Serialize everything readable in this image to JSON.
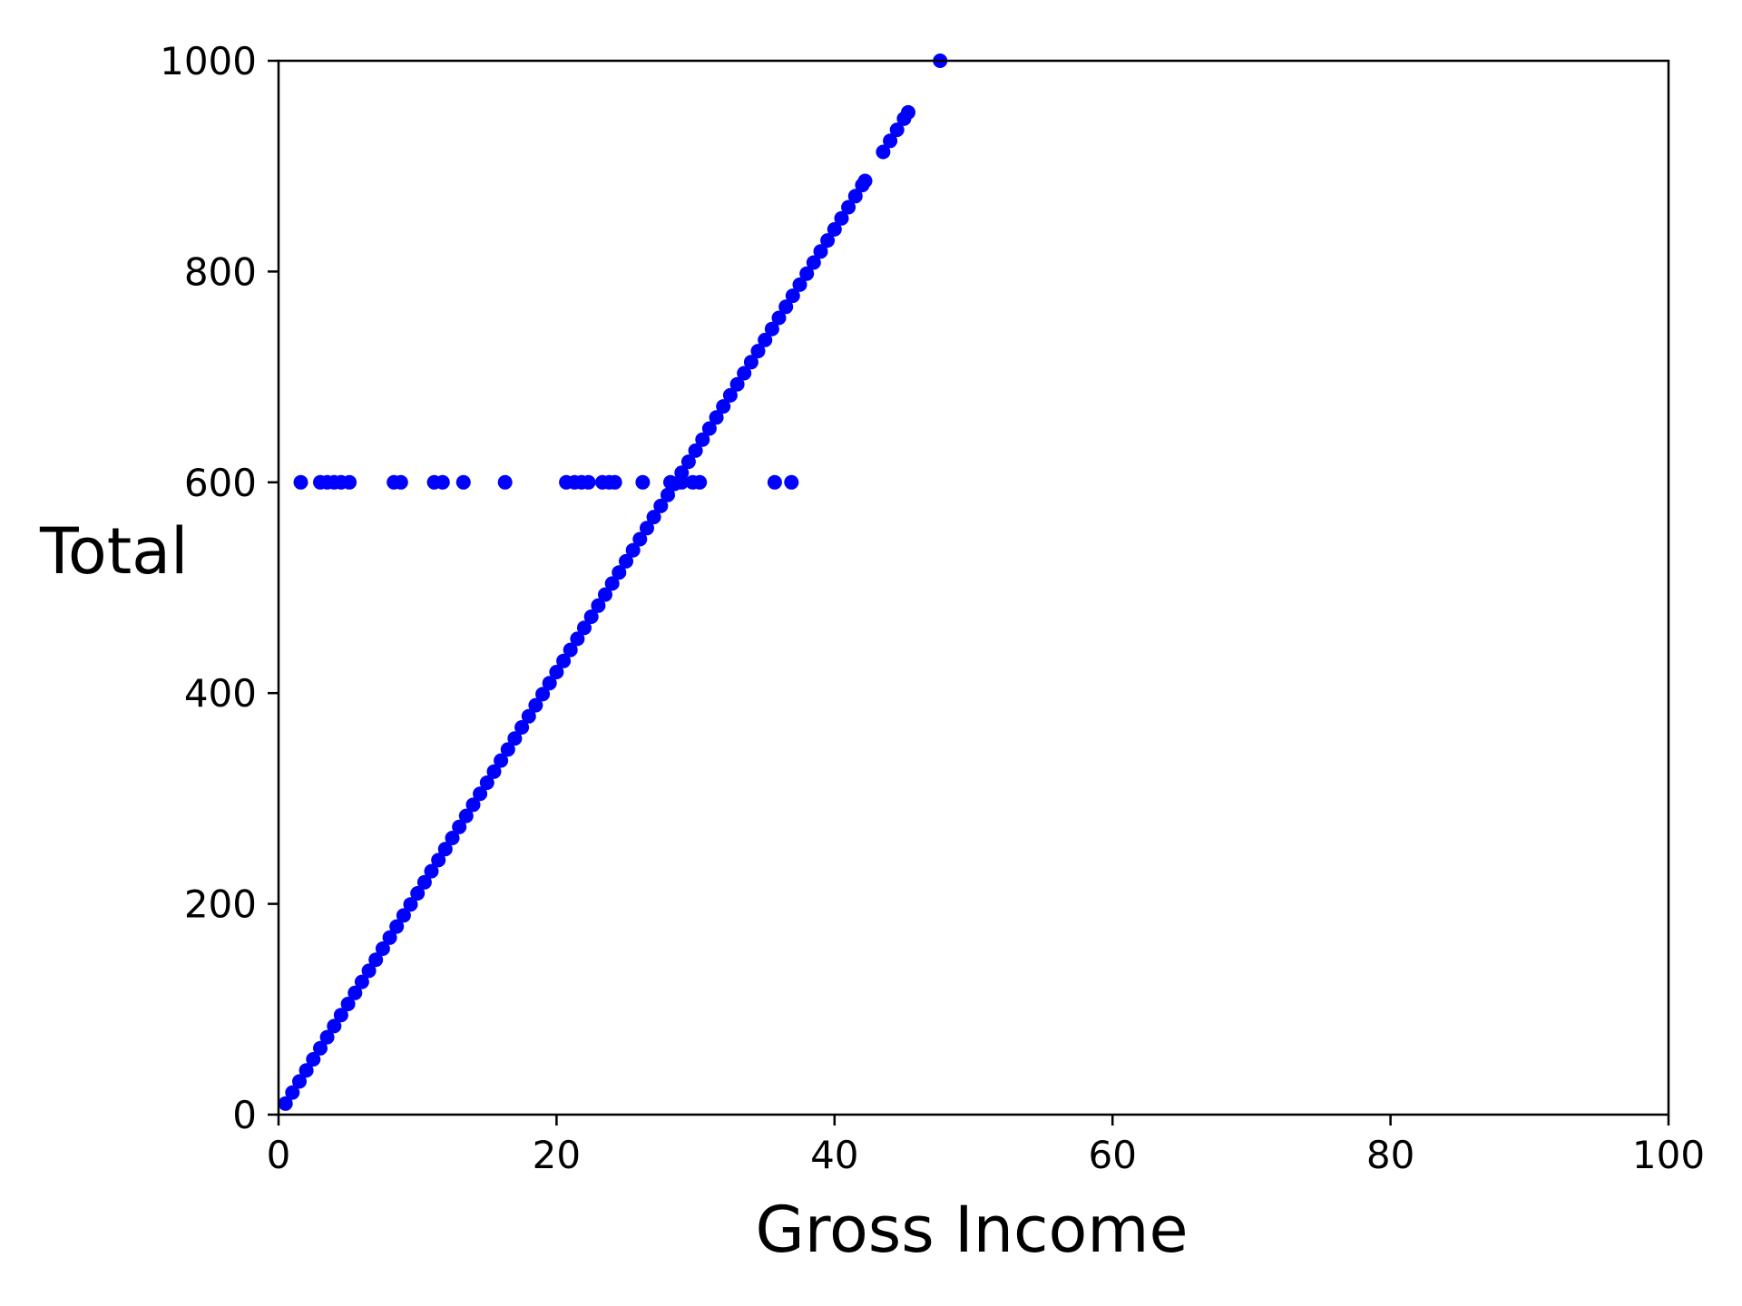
{
  "chart_data": {
    "type": "scatter",
    "title": "",
    "xlabel": "Gross Income",
    "ylabel": "Total",
    "xlim": [
      0,
      100
    ],
    "ylim": [
      0,
      1000
    ],
    "xticks": [
      "0",
      "20",
      "40",
      "60",
      "80",
      "100"
    ],
    "yticks": [
      "0",
      "200",
      "400",
      "600",
      "800",
      "1000"
    ],
    "grid": false,
    "color": "#0000ff",
    "series": [
      {
        "points": [
          [
            0.5,
            10.5
          ],
          [
            1.0,
            21
          ],
          [
            1.5,
            31.5
          ],
          [
            2.0,
            42
          ],
          [
            2.5,
            52.5
          ],
          [
            3.0,
            63
          ],
          [
            3.5,
            73.5
          ],
          [
            4.0,
            84
          ],
          [
            4.5,
            94.5
          ],
          [
            5.0,
            105
          ],
          [
            5.5,
            115.5
          ],
          [
            6.0,
            126
          ],
          [
            6.5,
            136.5
          ],
          [
            7.0,
            147
          ],
          [
            7.5,
            157.5
          ],
          [
            8.0,
            168
          ],
          [
            8.5,
            178.5
          ],
          [
            9.0,
            189
          ],
          [
            9.5,
            199.5
          ],
          [
            10.0,
            210
          ],
          [
            10.5,
            220.5
          ],
          [
            11.0,
            231
          ],
          [
            11.5,
            241.5
          ],
          [
            12.0,
            252
          ],
          [
            12.5,
            262.5
          ],
          [
            13.0,
            273
          ],
          [
            13.5,
            283.5
          ],
          [
            14.0,
            294
          ],
          [
            14.5,
            304.5
          ],
          [
            15.0,
            315
          ],
          [
            15.5,
            325.5
          ],
          [
            16.0,
            336
          ],
          [
            16.5,
            346.5
          ],
          [
            17.0,
            357
          ],
          [
            17.5,
            367.5
          ],
          [
            18.0,
            378
          ],
          [
            18.5,
            388.5
          ],
          [
            19.0,
            399
          ],
          [
            19.5,
            409.5
          ],
          [
            20.0,
            420
          ],
          [
            20.5,
            430.5
          ],
          [
            21.0,
            441
          ],
          [
            21.5,
            451.5
          ],
          [
            22.0,
            462
          ],
          [
            22.5,
            472.5
          ],
          [
            23.0,
            483
          ],
          [
            23.5,
            493.5
          ],
          [
            24.0,
            504
          ],
          [
            24.5,
            514.5
          ],
          [
            25.0,
            525
          ],
          [
            25.5,
            535.5
          ],
          [
            26.0,
            546
          ],
          [
            26.5,
            556.5
          ],
          [
            27.0,
            567
          ],
          [
            27.5,
            577.5
          ],
          [
            28.0,
            588
          ],
          [
            28.5,
            598.5
          ],
          [
            29.0,
            609
          ],
          [
            29.5,
            619.5
          ],
          [
            30.0,
            630
          ],
          [
            30.5,
            640.5
          ],
          [
            31.0,
            651
          ],
          [
            31.5,
            661.5
          ],
          [
            32.0,
            672
          ],
          [
            32.5,
            682.5
          ],
          [
            33.0,
            693
          ],
          [
            33.5,
            703.5
          ],
          [
            34.0,
            714
          ],
          [
            34.5,
            724.5
          ],
          [
            35.0,
            735
          ],
          [
            35.5,
            745.5
          ],
          [
            36.0,
            756
          ],
          [
            36.5,
            766.5
          ],
          [
            37.0,
            777
          ],
          [
            37.5,
            787.5
          ],
          [
            38.0,
            798
          ],
          [
            38.5,
            808.5
          ],
          [
            39.0,
            819
          ],
          [
            39.5,
            829.5
          ],
          [
            40.0,
            840
          ],
          [
            40.5,
            850.5
          ],
          [
            41.0,
            861
          ],
          [
            41.5,
            871.5
          ],
          [
            42.0,
            882
          ],
          [
            42.2,
            886
          ],
          [
            43.5,
            913.5
          ],
          [
            44.0,
            924
          ],
          [
            44.5,
            934.5
          ],
          [
            45.0,
            945
          ],
          [
            45.3,
            951
          ],
          [
            47.6,
            1000
          ],
          [
            1.6,
            600
          ],
          [
            3.0,
            600
          ],
          [
            3.5,
            600
          ],
          [
            4.0,
            600
          ],
          [
            4.5,
            600
          ],
          [
            5.1,
            600
          ],
          [
            8.3,
            600
          ],
          [
            8.8,
            600
          ],
          [
            11.2,
            600
          ],
          [
            11.8,
            600
          ],
          [
            13.3,
            600
          ],
          [
            16.3,
            600
          ],
          [
            20.7,
            600
          ],
          [
            21.3,
            600
          ],
          [
            21.8,
            600
          ],
          [
            22.3,
            600
          ],
          [
            23.3,
            600
          ],
          [
            23.8,
            600
          ],
          [
            24.2,
            600
          ],
          [
            26.2,
            600
          ],
          [
            28.2,
            600
          ],
          [
            29.0,
            600
          ],
          [
            29.8,
            600
          ],
          [
            30.3,
            600
          ],
          [
            35.7,
            600
          ],
          [
            36.9,
            600
          ]
        ]
      }
    ]
  }
}
